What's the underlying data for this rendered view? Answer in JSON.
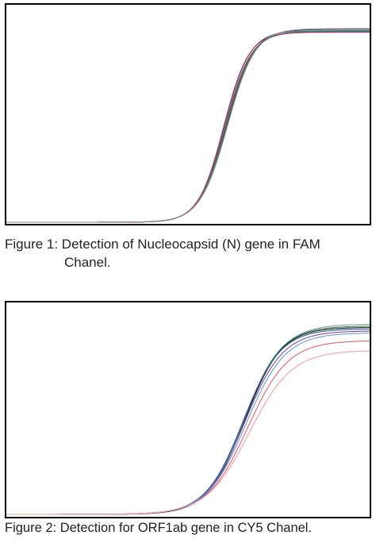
{
  "figures": [
    {
      "caption_line1": "Figure 1: Detection of Nucleocapsid (N) gene in FAM",
      "caption_line2": "Chanel.",
      "chart_data": {
        "type": "line",
        "title": "",
        "xlabel": "",
        "ylabel": "",
        "xlim": [
          0,
          45
        ],
        "ylim": [
          0,
          1
        ],
        "grid": false,
        "legend": "none",
        "series": [
          {
            "color": "#7a1f3a",
            "values": {
              "plateau": 0.952,
              "midpoint": 27.1,
              "slope": 0.62,
              "baseline": 0.0
            }
          },
          {
            "color": "#2a2a2a",
            "values": {
              "plateau": 0.965,
              "midpoint": 27.3,
              "slope": 0.6,
              "baseline": 0.0
            }
          },
          {
            "color": "#4a6fa5",
            "values": {
              "plateau": 0.958,
              "midpoint": 27.0,
              "slope": 0.63,
              "baseline": 0.0
            }
          },
          {
            "color": "#3c8f5a",
            "values": {
              "plateau": 0.955,
              "midpoint": 27.2,
              "slope": 0.61,
              "baseline": 0.0
            }
          },
          {
            "color": "#b03060",
            "values": {
              "plateau": 0.95,
              "midpoint": 26.9,
              "slope": 0.64,
              "baseline": 0.0
            }
          },
          {
            "color": "#8a8a8a",
            "values": {
              "plateau": 0.968,
              "midpoint": 27.4,
              "slope": 0.59,
              "baseline": 0.0
            }
          }
        ]
      }
    },
    {
      "caption": "Figure 2: Detection for ORF1ab gene in CY5 Chanel.",
      "chart_data": {
        "type": "line",
        "title": "",
        "xlabel": "",
        "ylabel": "",
        "xlim": [
          0,
          45
        ],
        "ylim": [
          0,
          1
        ],
        "grid": false,
        "legend": "none",
        "series": [
          {
            "color": "#9a9a9a",
            "values": {
              "plateau": 0.975,
              "midpoint": 29.6,
              "slope": 0.42,
              "baseline": 0.0
            }
          },
          {
            "color": "#2f8f5f",
            "values": {
              "plateau": 0.965,
              "midpoint": 29.4,
              "slope": 0.43,
              "baseline": 0.0
            }
          },
          {
            "color": "#1a1a1a",
            "values": {
              "plateau": 0.958,
              "midpoint": 29.5,
              "slope": 0.44,
              "baseline": 0.0
            }
          },
          {
            "color": "#3a5fa0",
            "values": {
              "plateau": 0.95,
              "midpoint": 29.3,
              "slope": 0.43,
              "baseline": 0.0
            }
          },
          {
            "color": "#7a4fa0",
            "values": {
              "plateau": 0.94,
              "midpoint": 29.5,
              "slope": 0.42,
              "baseline": 0.0
            }
          },
          {
            "color": "#6a9ad0",
            "values": {
              "plateau": 0.93,
              "midpoint": 29.7,
              "slope": 0.41,
              "baseline": 0.0
            }
          },
          {
            "color": "#e06070",
            "values": {
              "plateau": 0.89,
              "midpoint": 29.9,
              "slope": 0.4,
              "baseline": 0.0
            }
          },
          {
            "color": "#f0a0a8",
            "values": {
              "plateau": 0.84,
              "midpoint": 30.1,
              "slope": 0.38,
              "baseline": 0.0
            }
          }
        ]
      }
    }
  ]
}
